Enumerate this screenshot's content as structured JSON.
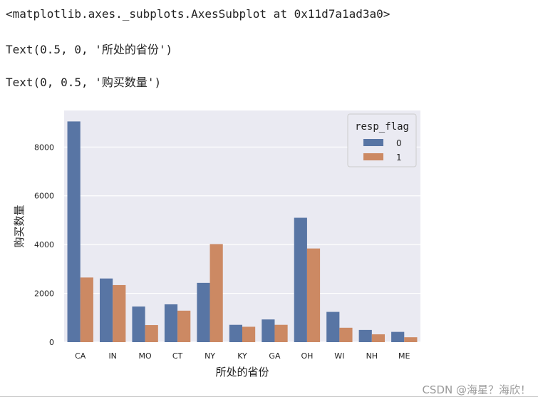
{
  "output": {
    "line1": "<matplotlib.axes._subplots.AxesSubplot at 0x11d7a1ad3a0>",
    "line2": "Text(0.5, 0, '所处的省份')",
    "line3": "Text(0, 0.5, '购买数量')"
  },
  "watermark": "CSDN @海星？海欣！",
  "colors": {
    "series_0": "#5875a4",
    "series_1": "#cc8963",
    "plot_bg": "#eaeaf2",
    "grid": "#ffffff"
  },
  "chart_data": {
    "type": "bar",
    "title": "",
    "xlabel": "所处的省份",
    "ylabel": "购买数量",
    "categories": [
      "CA",
      "IN",
      "MO",
      "CT",
      "NY",
      "KY",
      "GA",
      "OH",
      "WI",
      "NH",
      "ME"
    ],
    "series": [
      {
        "name": "0",
        "values": [
          9050,
          2610,
          1460,
          1550,
          2430,
          710,
          930,
          5100,
          1240,
          500,
          420
        ]
      },
      {
        "name": "1",
        "values": [
          2650,
          2340,
          700,
          1290,
          4020,
          630,
          710,
          3840,
          590,
          320,
          200
        ]
      }
    ],
    "yticks": [
      0,
      2000,
      4000,
      6000,
      8000
    ],
    "ylim": [
      0,
      9500
    ],
    "grid": true,
    "legend": {
      "title": "resp_flag",
      "placement": "top-right"
    }
  }
}
